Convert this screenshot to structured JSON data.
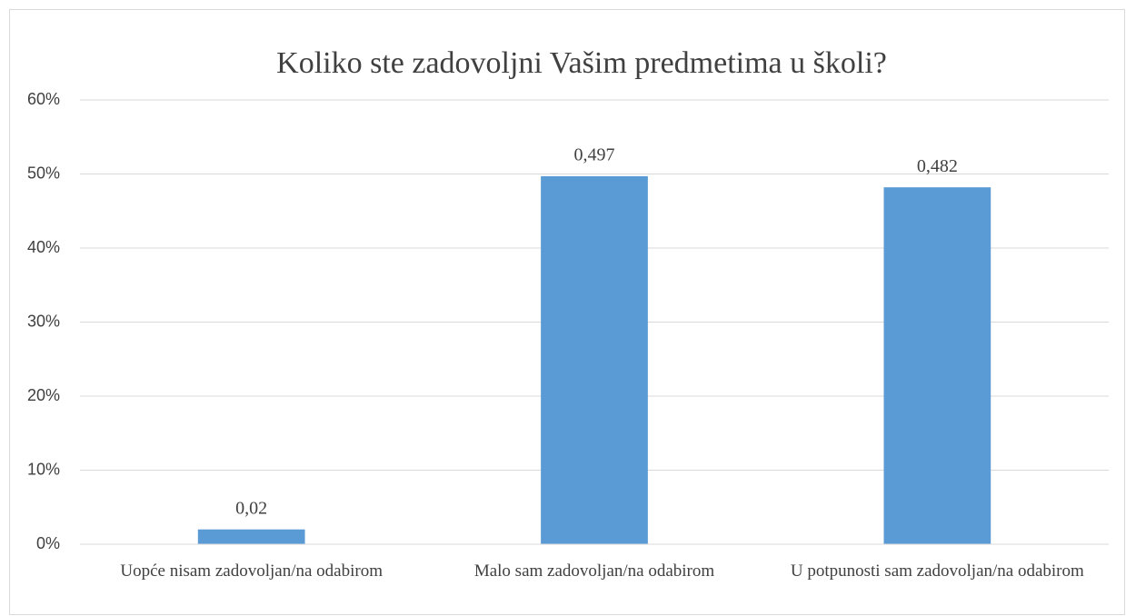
{
  "chart_data": {
    "type": "bar",
    "title": "Koliko ste zadovoljni Vašim predmetima u školi?",
    "categories": [
      "Uopće nisam zadovoljan/na odabirom",
      "Malo sam zadovoljan/na odabirom",
      "U potpunosti sam zadovoljan/na odabirom"
    ],
    "values": [
      2,
      49.7,
      48.2
    ],
    "value_labels": [
      "0,02",
      "0,497",
      "0,482"
    ],
    "color": "#5b9bd5",
    "ylim": [
      0,
      60
    ],
    "yticks": [
      {
        "value": 0,
        "label": "0%"
      },
      {
        "value": 10,
        "label": "10%"
      },
      {
        "value": 20,
        "label": "20%"
      },
      {
        "value": 30,
        "label": "30%"
      },
      {
        "value": 40,
        "label": "40%"
      },
      {
        "value": 50,
        "label": "50%"
      },
      {
        "value": 60,
        "label": "60%"
      }
    ],
    "grid": true
  }
}
